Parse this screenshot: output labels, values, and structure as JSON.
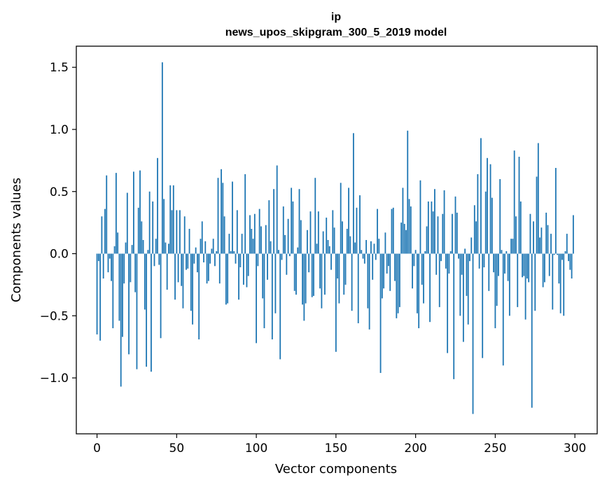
{
  "chart_data": {
    "type": "bar",
    "title": "ip",
    "subtitle": "news_upos_skipgram_300_5_2019 model",
    "xlabel": "Vector components",
    "ylabel": "Components values",
    "xlim": [
      -13,
      314
    ],
    "ylim": [
      -1.45,
      1.67
    ],
    "xticks": [
      0,
      50,
      100,
      150,
      200,
      250,
      300
    ],
    "yticks": [
      -1.0,
      -0.5,
      0.0,
      0.5,
      1.0,
      1.5
    ],
    "ytick_labels": [
      "−1.0",
      "−0.5",
      "0.0",
      "0.5",
      "1.0",
      "1.5"
    ],
    "grid": false,
    "color": "#1f77b4",
    "values": [
      -0.65,
      -0.06,
      -0.7,
      0.3,
      -0.2,
      0.36,
      0.63,
      -0.15,
      -0.04,
      -0.22,
      -0.6,
      0.06,
      0.65,
      0.17,
      -0.54,
      -1.07,
      -0.67,
      -0.24,
      0.09,
      0.49,
      -0.81,
      -0.23,
      0.07,
      0.66,
      -0.31,
      -0.93,
      0.37,
      0.67,
      0.26,
      0.11,
      -0.45,
      -0.91,
      0.03,
      0.5,
      -0.95,
      0.42,
      -0.1,
      0.12,
      0.77,
      -0.09,
      -0.68,
      1.54,
      0.44,
      0.09,
      -0.29,
      0.08,
      0.55,
      0.35,
      0.55,
      -0.37,
      0.35,
      -0.23,
      0.35,
      -0.26,
      -0.44,
      0.3,
      -0.13,
      -0.12,
      0.2,
      -0.46,
      -0.57,
      -0.08,
      0.05,
      -0.15,
      -0.69,
      0.12,
      0.26,
      -0.07,
      0.1,
      -0.24,
      -0.22,
      -0.08,
      0.04,
      0.12,
      -0.1,
      0.02,
      0.61,
      -0.24,
      0.68,
      0.57,
      0.3,
      -0.41,
      -0.4,
      0.16,
      0.02,
      0.58,
      0.02,
      -0.08,
      0.35,
      -0.37,
      -0.11,
      0.16,
      -0.25,
      0.64,
      -0.27,
      -0.18,
      0.31,
      0.2,
      0.12,
      0.32,
      -0.72,
      -0.1,
      0.36,
      0.22,
      -0.36,
      -0.6,
      0.23,
      -0.21,
      0.43,
      0.1,
      -0.69,
      0.52,
      -0.48,
      0.71,
      0.03,
      -0.85,
      -0.05,
      0.38,
      0.15,
      -0.17,
      0.28,
      -0.02,
      0.53,
      0.42,
      -0.3,
      -0.33,
      0.05,
      0.52,
      0.27,
      -0.41,
      -0.54,
      -0.4,
      0.19,
      -0.15,
      0.34,
      -0.35,
      -0.34,
      0.61,
      0.08,
      0.34,
      -0.28,
      -0.44,
      0.18,
      -0.33,
      0.29,
      0.11,
      0.06,
      -0.13,
      0.35,
      0.21,
      -0.79,
      -0.2,
      -0.4,
      0.57,
      0.26,
      -0.33,
      -0.25,
      0.2,
      0.53,
      0.14,
      -0.46,
      0.97,
      0.09,
      0.37,
      -0.56,
      0.47,
      0.03,
      -0.04,
      -0.08,
      0.11,
      -0.44,
      -0.61,
      0.1,
      -0.21,
      0.08,
      -0.05,
      0.36,
      0.12,
      -0.96,
      -0.36,
      -0.28,
      0.17,
      -0.16,
      -0.1,
      -0.3,
      0.36,
      0.37,
      -0.22,
      -0.52,
      -0.48,
      -0.43,
      0.25,
      0.53,
      0.24,
      0.19,
      0.99,
      0.44,
      0.38,
      -0.28,
      -0.1,
      0.03,
      -0.48,
      -0.6,
      0.59,
      -0.25,
      -0.4,
      0.02,
      0.22,
      0.42,
      -0.55,
      0.42,
      0.34,
      0.52,
      -0.17,
      0.3,
      -0.43,
      -0.06,
      0.32,
      0.51,
      -0.12,
      -0.8,
      -0.16,
      0.02,
      0.32,
      -1.01,
      0.46,
      0.33,
      -0.04,
      -0.5,
      -0.17,
      -0.71,
      0.04,
      -0.34,
      -0.57,
      -0.06,
      0.13,
      -1.29,
      0.39,
      0.26,
      0.64,
      -0.12,
      0.93,
      -0.84,
      -0.11,
      0.5,
      0.77,
      -0.3,
      0.72,
      0.45,
      -0.15,
      -0.6,
      -0.42,
      -0.18,
      0.6,
      0.03,
      -0.9,
      -0.16,
      0.02,
      -0.22,
      -0.5,
      0.12,
      0.12,
      0.83,
      0.3,
      -0.43,
      0.78,
      0.42,
      -0.19,
      -0.18,
      -0.53,
      -0.2,
      -0.23,
      0.32,
      -1.24,
      0.26,
      -0.46,
      0.62,
      0.89,
      0.13,
      0.21,
      -0.27,
      -0.23,
      0.33,
      0.23,
      -0.18,
      0.16,
      -0.45,
      -0.01,
      0.69,
      -0.01,
      -0.24,
      -0.48,
      -0.05,
      -0.5,
      0.02,
      0.16,
      -0.06,
      -0.13,
      -0.2,
      0.31
    ]
  }
}
